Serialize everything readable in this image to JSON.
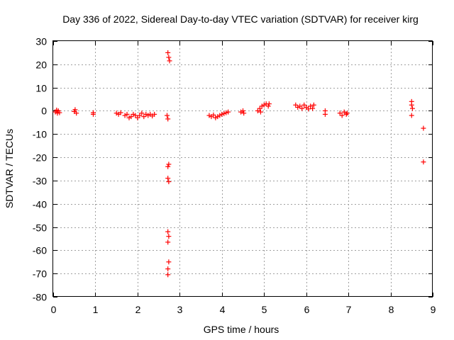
{
  "chart_data": {
    "type": "scatter",
    "title": "Day 336 of 2022, Sidereal Day-to-day VTEC variation (SDTVAR) for receiver kirg",
    "xlabel": "GPS time / hours",
    "ylabel": "SDTVAR / TECUs",
    "xlim": [
      0,
      9
    ],
    "ylim": [
      -80,
      30
    ],
    "x_ticks": [
      0,
      1,
      2,
      3,
      4,
      5,
      6,
      7,
      8,
      9
    ],
    "y_ticks": [
      30,
      20,
      10,
      0,
      -10,
      -20,
      -30,
      -40,
      -50,
      -60,
      -70,
      -80
    ],
    "grid": true,
    "marker": "+",
    "marker_color": "#ff0000",
    "series": [
      {
        "name": "SDTVAR",
        "points": [
          [
            0.05,
            -0.5
          ],
          [
            0.08,
            0.3
          ],
          [
            0.1,
            -1.0
          ],
          [
            0.12,
            0.0
          ],
          [
            0.15,
            -0.8
          ],
          [
            0.5,
            -0.3
          ],
          [
            0.52,
            0.5
          ],
          [
            0.55,
            -1.0
          ],
          [
            0.95,
            -0.8
          ],
          [
            0.95,
            -1.5
          ],
          [
            1.5,
            -1.0
          ],
          [
            1.55,
            -1.5
          ],
          [
            1.6,
            -0.8
          ],
          [
            1.7,
            -2.0
          ],
          [
            1.75,
            -1.5
          ],
          [
            1.8,
            -3.0
          ],
          [
            1.85,
            -2.5
          ],
          [
            1.9,
            -1.5
          ],
          [
            1.95,
            -2.0
          ],
          [
            2.0,
            -3.0
          ],
          [
            2.05,
            -2.0
          ],
          [
            2.1,
            -1.0
          ],
          [
            2.15,
            -2.5
          ],
          [
            2.2,
            -1.5
          ],
          [
            2.25,
            -2.0
          ],
          [
            2.3,
            -1.5
          ],
          [
            2.35,
            -2.2
          ],
          [
            2.4,
            -1.5
          ],
          [
            2.7,
            -2.0
          ],
          [
            2.72,
            -3.5
          ],
          [
            2.72,
            25.0
          ],
          [
            2.74,
            23.0
          ],
          [
            2.76,
            21.5
          ],
          [
            2.72,
            -24.0
          ],
          [
            2.74,
            -23.0
          ],
          [
            2.72,
            -29.0
          ],
          [
            2.74,
            -30.5
          ],
          [
            2.72,
            -52.0
          ],
          [
            2.74,
            -54.0
          ],
          [
            2.72,
            -56.5
          ],
          [
            2.74,
            -65.0
          ],
          [
            2.72,
            -68.0
          ],
          [
            2.72,
            -70.5
          ],
          [
            3.7,
            -2.0
          ],
          [
            3.75,
            -2.5
          ],
          [
            3.8,
            -1.8
          ],
          [
            3.85,
            -3.0
          ],
          [
            3.9,
            -2.5
          ],
          [
            3.95,
            -2.0
          ],
          [
            4.0,
            -1.5
          ],
          [
            4.05,
            -1.2
          ],
          [
            4.1,
            -0.8
          ],
          [
            4.15,
            -0.5
          ],
          [
            4.45,
            -0.5
          ],
          [
            4.5,
            0.0
          ],
          [
            4.52,
            -1.0
          ],
          [
            4.85,
            0.0
          ],
          [
            4.9,
            1.0
          ],
          [
            4.92,
            -0.5
          ],
          [
            4.95,
            2.0
          ],
          [
            5.0,
            2.5
          ],
          [
            5.05,
            3.0
          ],
          [
            5.1,
            2.0
          ],
          [
            5.12,
            3.0
          ],
          [
            5.75,
            2.5
          ],
          [
            5.8,
            1.5
          ],
          [
            5.85,
            2.0
          ],
          [
            5.9,
            1.0
          ],
          [
            5.95,
            2.5
          ],
          [
            6.0,
            1.5
          ],
          [
            6.05,
            0.8
          ],
          [
            6.1,
            2.0
          ],
          [
            6.15,
            1.0
          ],
          [
            6.18,
            2.5
          ],
          [
            6.45,
            0.0
          ],
          [
            6.45,
            -1.5
          ],
          [
            6.8,
            -1.0
          ],
          [
            6.85,
            -2.0
          ],
          [
            6.9,
            -0.5
          ],
          [
            6.95,
            -1.5
          ],
          [
            6.97,
            -1.0
          ],
          [
            8.5,
            4.0
          ],
          [
            8.5,
            2.5
          ],
          [
            8.52,
            1.0
          ],
          [
            8.5,
            -2.0
          ],
          [
            8.78,
            -7.5
          ],
          [
            8.78,
            -22.0
          ]
        ]
      }
    ]
  }
}
